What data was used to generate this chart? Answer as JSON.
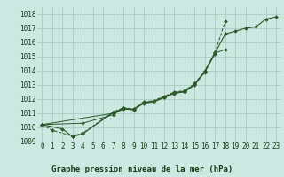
{
  "title": "Graphe pression niveau de la mer (hPa)",
  "xlim": [
    -0.5,
    23.5
  ],
  "ylim": [
    1009,
    1018.5
  ],
  "yticks": [
    1009,
    1010,
    1011,
    1012,
    1013,
    1014,
    1015,
    1016,
    1017,
    1018
  ],
  "xticks": [
    0,
    1,
    2,
    3,
    4,
    5,
    6,
    7,
    8,
    9,
    10,
    11,
    12,
    13,
    14,
    15,
    16,
    17,
    18,
    19,
    20,
    21,
    22,
    23
  ],
  "bg_color": "#cce8e0",
  "grid_color": "#aaccc4",
  "line_color": "#2d5a2d",
  "series": [
    [
      1010.2,
      1009.8,
      null,
      1009.4,
      1009.6,
      null,
      null,
      1011.1,
      1011.4,
      1011.3,
      1011.8,
      1011.9,
      1012.2,
      1012.5,
      1012.6,
      1013.1,
      1014.0,
      1015.3,
      1017.5,
      null,
      null,
      null,
      null,
      null
    ],
    [
      1010.2,
      null,
      null,
      null,
      1010.3,
      null,
      null,
      1010.9,
      1011.35,
      1011.3,
      1011.75,
      1011.85,
      1012.15,
      1012.45,
      1012.55,
      1013.05,
      1013.95,
      1015.25,
      1015.5,
      null,
      null,
      null,
      null,
      null
    ],
    [
      1010.2,
      null,
      null,
      null,
      null,
      null,
      null,
      1011.0,
      1011.3,
      1011.25,
      1011.7,
      1011.8,
      1012.1,
      1012.4,
      1012.5,
      1013.0,
      1013.9,
      1015.2,
      null,
      null,
      null,
      null,
      null,
      null
    ],
    [
      1010.2,
      null,
      1009.9,
      1009.35,
      1009.55,
      null,
      null,
      1011.05,
      1011.35,
      1011.25,
      1011.75,
      1011.85,
      1012.15,
      1012.45,
      1012.55,
      1013.05,
      1013.95,
      1015.25,
      1016.6,
      1016.8,
      1017.0,
      1017.1,
      1017.65,
      1017.8
    ]
  ],
  "tick_fontsize": 5.5,
  "xlabel_fontsize": 6.5
}
